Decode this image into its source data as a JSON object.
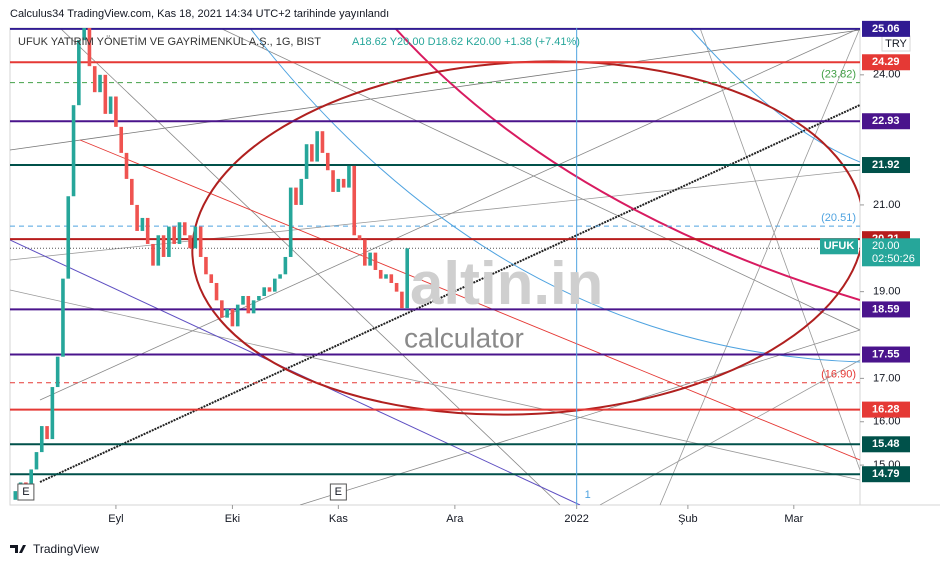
{
  "header": {
    "published": "Calculus34 TradingView.com, Kas 18, 2021 14:34 UTC+2 tarihinde yayınlandı"
  },
  "chart_data": {
    "type": "candlestick",
    "title": "UFUK YATIRIM YÖNETİM VE GAYRİMENKUL A.Ş., 1G, BIST",
    "ohlc_summary": "A18.62 Y20.00 D18.62 K20.00 +1.38 (+7.41%)",
    "currency": "TRY",
    "up_color": "#26a69a",
    "down_color": "#ef5350",
    "x": [
      0,
      1,
      2,
      3,
      4,
      5,
      6,
      7,
      8,
      9,
      10,
      11,
      12,
      13,
      14,
      15,
      16,
      17,
      18,
      19,
      20,
      21,
      22,
      23,
      24,
      25,
      26,
      27,
      28,
      29,
      30,
      31,
      32,
      33,
      34,
      35,
      36,
      37,
      38,
      39,
      40,
      41,
      42,
      43,
      44,
      45,
      46,
      47,
      48,
      49,
      50,
      51,
      52,
      53,
      54,
      55,
      56,
      57,
      58,
      59,
      60,
      61,
      62,
      63,
      64,
      65,
      66,
      67,
      68,
      69,
      70,
      71,
      72,
      73,
      74
    ],
    "open": [
      14.2,
      14.4,
      14.6,
      14.5,
      14.9,
      15.3,
      15.9,
      15.6,
      16.8,
      17.5,
      19.3,
      21.2,
      23.3,
      24.8,
      25.4,
      24.2,
      23.6,
      24.0,
      23.1,
      23.5,
      22.8,
      22.2,
      21.6,
      21.0,
      20.4,
      20.7,
      20.1,
      19.6,
      20.3,
      19.8,
      20.5,
      20.1,
      20.6,
      20.3,
      20.0,
      20.5,
      19.8,
      19.4,
      19.2,
      18.8,
      18.4,
      18.6,
      18.2,
      18.7,
      18.9,
      18.5,
      18.8,
      18.9,
      19.1,
      19.0,
      19.3,
      19.4,
      19.8,
      21.4,
      21.0,
      21.6,
      22.4,
      22.0,
      22.7,
      22.2,
      21.8,
      21.3,
      21.6,
      21.4,
      21.9,
      20.3,
      20.2,
      19.6,
      19.9,
      19.5,
      19.3,
      19.4,
      19.2,
      19.0,
      18.62
    ],
    "close": [
      14.4,
      14.6,
      14.5,
      14.9,
      15.3,
      15.9,
      15.6,
      16.8,
      17.5,
      19.3,
      21.2,
      23.3,
      24.8,
      25.4,
      24.2,
      23.6,
      24.0,
      23.1,
      23.5,
      22.8,
      22.2,
      21.6,
      21.0,
      20.4,
      20.7,
      20.1,
      19.6,
      20.3,
      19.8,
      20.5,
      20.1,
      20.6,
      20.3,
      20.0,
      20.5,
      19.8,
      19.4,
      19.2,
      18.8,
      18.4,
      18.6,
      18.2,
      18.7,
      18.9,
      18.5,
      18.8,
      18.9,
      19.1,
      19.0,
      19.3,
      19.4,
      19.8,
      21.4,
      21.0,
      21.6,
      22.4,
      22.0,
      22.7,
      22.2,
      21.8,
      21.3,
      21.6,
      21.4,
      21.9,
      20.3,
      20.2,
      19.6,
      19.9,
      19.5,
      19.3,
      19.4,
      19.2,
      19.0,
      18.62,
      20.0
    ],
    "xlim": [
      -1,
      159.5
    ],
    "xticks": [
      {
        "value": 19,
        "label": "Eyl"
      },
      {
        "value": 41,
        "label": "Eki"
      },
      {
        "value": 61,
        "label": "Kas"
      },
      {
        "value": 83,
        "label": "Ara"
      },
      {
        "value": 106,
        "label": "2022"
      },
      {
        "value": 127,
        "label": "Şub"
      },
      {
        "value": 147,
        "label": "Mar"
      }
    ],
    "ylim": [
      14.08,
      25.08
    ],
    "yticks": [
      {
        "value": 24,
        "label": "24.00"
      },
      {
        "value": 21,
        "label": "21.00"
      },
      {
        "value": 19,
        "label": "19.00"
      },
      {
        "value": 17,
        "label": "17.00"
      },
      {
        "value": 16,
        "label": "16.00"
      },
      {
        "value": 15,
        "label": "15.00"
      }
    ],
    "levels": [
      {
        "value": 25.06,
        "label": "25.06",
        "color": "#311b92",
        "style": "solid"
      },
      {
        "value": 24.29,
        "label": "24.29",
        "color": "#e53935",
        "style": "solid"
      },
      {
        "value": 23.82,
        "label": "(23.82)",
        "color": "#43a047",
        "style": "dashed"
      },
      {
        "value": 22.93,
        "label": "22.93",
        "color": "#4a148c",
        "style": "solid"
      },
      {
        "value": 21.92,
        "label": "21.92",
        "color": "#00514a",
        "style": "solid"
      },
      {
        "value": 20.51,
        "label": "(20.51)",
        "color": "#4fa3e0",
        "style": "dashed"
      },
      {
        "value": 20.21,
        "label": "20.21",
        "color": "#b71c1c",
        "style": "solid"
      },
      {
        "value": 18.59,
        "label": "18.59",
        "color": "#4a148c",
        "style": "solid"
      },
      {
        "value": 17.55,
        "label": "17.55",
        "color": "#4a148c",
        "style": "solid"
      },
      {
        "value": 16.9,
        "label": "(16.90)",
        "color": "#e53935",
        "style": "dashed"
      },
      {
        "value": 16.28,
        "label": "16.28",
        "color": "#e53935",
        "style": "solid"
      },
      {
        "value": 15.48,
        "label": "15.48",
        "color": "#00514a",
        "style": "solid"
      },
      {
        "value": 14.79,
        "label": "14.79",
        "color": "#00514a",
        "style": "solid"
      }
    ],
    "last_price": {
      "symbol": "UFUK",
      "value": 20,
      "label": "20.00",
      "countdown": "02:50:26",
      "color": "#26a69a"
    },
    "events": [
      {
        "x": 2,
        "label": "E"
      },
      {
        "x": 61,
        "label": "E"
      }
    ],
    "cursor": {
      "x": 106,
      "label": "1"
    },
    "watermark": [
      "altin.in",
      "calculator"
    ]
  },
  "footer": {
    "brand": "TradingView"
  }
}
